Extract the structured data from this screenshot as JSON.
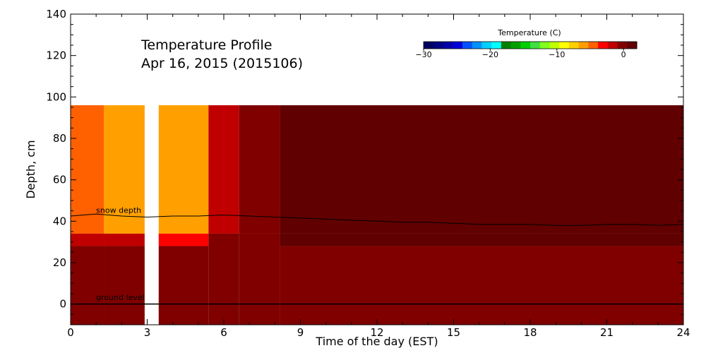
{
  "chart_data": {
    "type": "heatmap",
    "title_line1": "Temperature Profile",
    "title_line2": "Apr 16, 2015 (2015106)",
    "xlabel": "Time of the day (EST)",
    "ylabel": "Depth, cm",
    "xlim": [
      0,
      24
    ],
    "ylim": [
      -10,
      140
    ],
    "x_ticks": [
      "0",
      "3",
      "6",
      "9",
      "12",
      "15",
      "18",
      "21",
      "24"
    ],
    "y_ticks": [
      "0",
      "20",
      "40",
      "60",
      "80",
      "100",
      "120",
      "140"
    ],
    "x_tick_values": [
      0,
      3,
      6,
      9,
      12,
      15,
      18,
      21,
      24
    ],
    "y_tick_values": [
      0,
      20,
      40,
      60,
      80,
      100,
      120,
      140
    ],
    "colorbar": {
      "title": "Temperature (C)",
      "range": [
        -30,
        2
      ],
      "tick_values": [
        -30,
        -20,
        -10,
        0
      ],
      "tick_labels": [
        "−30",
        "−20",
        "−10",
        "0"
      ],
      "colors": [
        "#000060",
        "#000080",
        "#0000a8",
        "#0000d8",
        "#0050ff",
        "#0090ff",
        "#00d0ff",
        "#00ffff",
        "#008000",
        "#00a000",
        "#00d000",
        "#40e040",
        "#80ff20",
        "#c0ff00",
        "#ffff00",
        "#ffd000",
        "#ffa000",
        "#ff6000",
        "#ff0000",
        "#c00000",
        "#800000",
        "#600000"
      ]
    },
    "data_gap": [
      2.9,
      3.45
    ],
    "sensor_top_depth": 96,
    "temperature_cells": [
      {
        "t0": 0,
        "t1": 1.3,
        "d0": 34,
        "d1": 96,
        "temp": -5
      },
      {
        "t0": 0,
        "t1": 1.3,
        "d0": 28,
        "d1": 34,
        "temp": -1
      },
      {
        "t0": 0,
        "t1": 1.3,
        "d0": -10,
        "d1": 28,
        "temp": 0
      },
      {
        "t0": 1.3,
        "t1": 2.9,
        "d0": 34,
        "d1": 96,
        "temp": -6
      },
      {
        "t0": 1.3,
        "t1": 2.9,
        "d0": 28,
        "d1": 34,
        "temp": -1
      },
      {
        "t0": 1.3,
        "t1": 2.9,
        "d0": -10,
        "d1": 28,
        "temp": 0
      },
      {
        "t0": 3.45,
        "t1": 5.4,
        "d0": 34,
        "d1": 96,
        "temp": -6
      },
      {
        "t0": 3.45,
        "t1": 5.4,
        "d0": 28,
        "d1": 34,
        "temp": -3
      },
      {
        "t0": 3.45,
        "t1": 5.4,
        "d0": -10,
        "d1": 28,
        "temp": 0
      },
      {
        "t0": 5.4,
        "t1": 6.6,
        "d0": 34,
        "d1": 96,
        "temp": -2
      },
      {
        "t0": 5.4,
        "t1": 6.6,
        "d0": -10,
        "d1": 34,
        "temp": 0
      },
      {
        "t0": 6.6,
        "t1": 8.2,
        "d0": 34,
        "d1": 96,
        "temp": 0
      },
      {
        "t0": 6.6,
        "t1": 8.2,
        "d0": -10,
        "d1": 34,
        "temp": 0
      },
      {
        "t0": 8.2,
        "t1": 24,
        "d0": 34,
        "d1": 96,
        "temp": 2
      },
      {
        "t0": 8.2,
        "t1": 24,
        "d0": 28,
        "d1": 34,
        "temp": 2
      },
      {
        "t0": 8.2,
        "t1": 24,
        "d0": -10,
        "d1": 28,
        "temp": 0
      }
    ],
    "annotations": [
      {
        "text": "snow depth",
        "x": 1.0,
        "y": 44
      },
      {
        "text": "ground level",
        "x": 1.0,
        "y": 2
      }
    ],
    "snow_depth_series": {
      "x": [
        0,
        1,
        2,
        3,
        4,
        5,
        6,
        7,
        8,
        9,
        10,
        11,
        12,
        13,
        14,
        15,
        16,
        17,
        18,
        19,
        20,
        21,
        22,
        23,
        24
      ],
      "y": [
        42.5,
        43.5,
        42.5,
        42.0,
        42.5,
        42.5,
        43.0,
        42.5,
        42.0,
        41.5,
        41.0,
        40.5,
        40.0,
        39.5,
        39.5,
        39.0,
        38.5,
        38.5,
        38.5,
        38.0,
        38.0,
        38.5,
        38.5,
        38.0,
        38.5
      ]
    },
    "ground_level": 0
  }
}
